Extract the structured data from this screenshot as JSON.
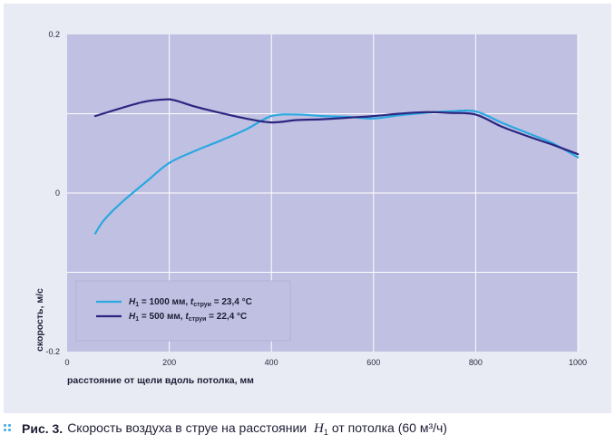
{
  "chart_data": {
    "type": "line",
    "xlabel": "расстояние от щели вдоль потолка, мм",
    "ylabel": "скорость, м/с",
    "xlim": [
      0,
      1000
    ],
    "ylim": [
      -0.2,
      0.2
    ],
    "x_ticks": [
      "0",
      "200",
      "400",
      "600",
      "800",
      "1000"
    ],
    "y_ticks": [
      "0.2",
      "0",
      "-0.2"
    ],
    "grid": true,
    "legend_position": "bottom-left",
    "series": [
      {
        "name_main": "H",
        "name_sub": "1",
        "name_rest": " = 1000 мм, ",
        "name_t": "t",
        "name_t_sub": "струи",
        "name_t_rest": " = 23,4 °C",
        "color": "#2aa8e0",
        "x": [
          55,
          70,
          90,
          110,
          130,
          160,
          200,
          250,
          300,
          350,
          400,
          450,
          500,
          550,
          600,
          650,
          700,
          750,
          800,
          850,
          900,
          950,
          1000
        ],
        "values": [
          -0.051,
          -0.036,
          -0.022,
          -0.01,
          0.001,
          0.017,
          0.038,
          0.053,
          0.066,
          0.08,
          0.097,
          0.099,
          0.097,
          0.096,
          0.094,
          0.098,
          0.101,
          0.103,
          0.103,
          0.089,
          0.076,
          0.063,
          0.045
        ]
      },
      {
        "name_main": "H",
        "name_sub": "1",
        "name_rest": " = 500 мм, ",
        "name_t": "t",
        "name_t_sub": "струи",
        "name_t_rest": " = 22,4 °C",
        "color": "#2b2580",
        "x": [
          55,
          100,
          150,
          190,
          210,
          250,
          300,
          350,
          400,
          450,
          500,
          550,
          600,
          650,
          700,
          750,
          800,
          850,
          900,
          950,
          1000
        ],
        "values": [
          0.097,
          0.106,
          0.115,
          0.118,
          0.117,
          0.109,
          0.101,
          0.094,
          0.089,
          0.092,
          0.093,
          0.095,
          0.097,
          0.1,
          0.102,
          0.101,
          0.099,
          0.084,
          0.072,
          0.061,
          0.049
        ]
      }
    ]
  },
  "caption": {
    "prefix": "Рис. 3.",
    "text": "Скорость воздуха в струе на расстоянии",
    "var": "H",
    "var_sub": "1",
    "suffix": "от потолка (60 м³/ч)"
  },
  "colors": {
    "plot_bg": "#c0c0e2",
    "panel_bg": "#e8ebf3",
    "grid": "#ffffff",
    "accent": "#4ab0e2"
  }
}
